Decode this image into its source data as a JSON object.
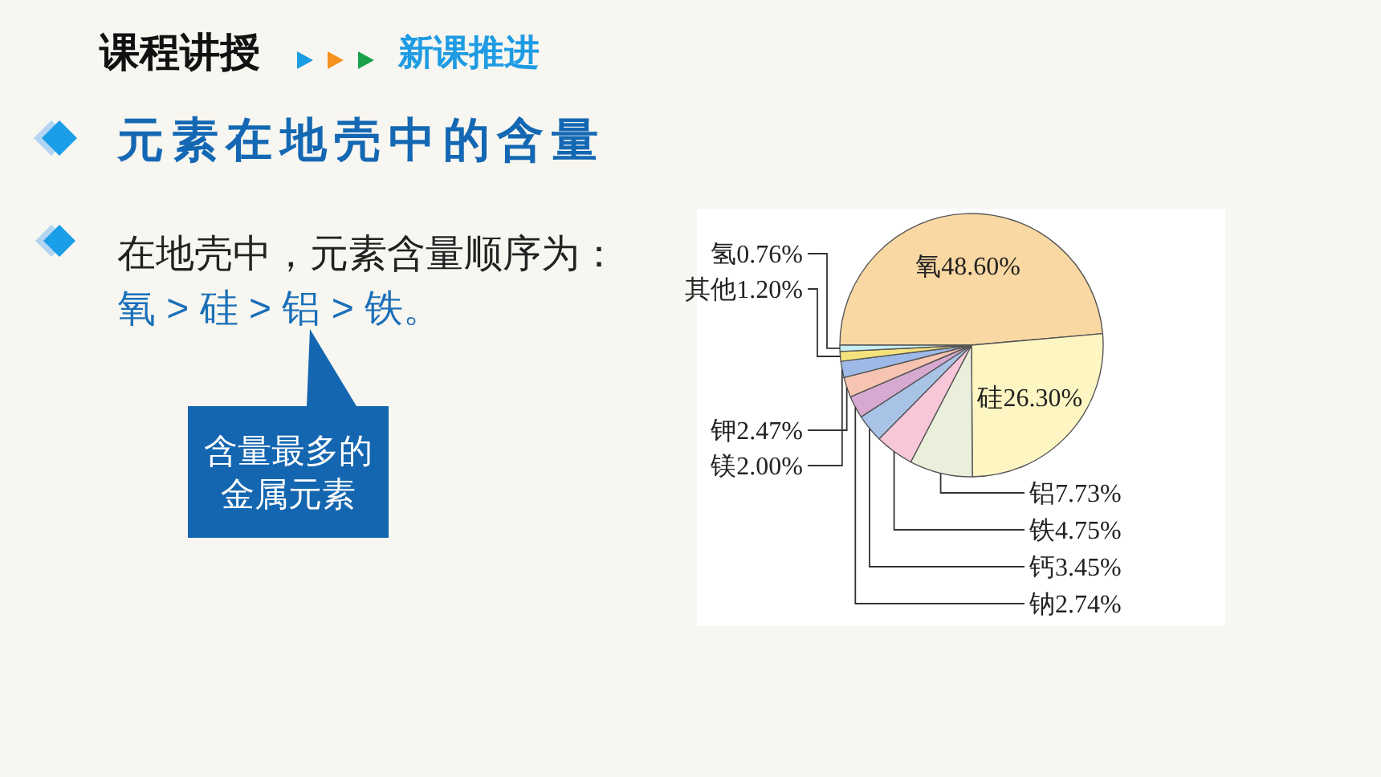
{
  "chart_data": {
    "type": "pie",
    "title": "元素在地壳中的含量",
    "categories": [
      "氧",
      "硅",
      "铝",
      "铁",
      "钙",
      "钠",
      "钾",
      "镁",
      "其他",
      "氢"
    ],
    "values": [
      48.6,
      26.3,
      7.73,
      4.75,
      3.45,
      2.74,
      2.47,
      2.0,
      1.2,
      0.76
    ],
    "value_labels": [
      "48.60%",
      "26.30%",
      "7.73%",
      "4.75%",
      "3.45%",
      "2.74%",
      "2.47%",
      "2.00%",
      "1.20%",
      "0.76%"
    ],
    "colors": [
      "#f9d8a3",
      "#fdf6c3",
      "#e9efdb",
      "#f7c7d9",
      "#a8c3e6",
      "#d6a9d0",
      "#f7c4b1",
      "#9eb9e7",
      "#f6e27c",
      "#c6eef2"
    ],
    "annotations": [
      "课程讲授",
      "新课推进",
      "在地壳中，元素含量顺序为：",
      "氧 > 硅 > 铝 > 铁。",
      "含量最多的金属元素"
    ]
  }
}
